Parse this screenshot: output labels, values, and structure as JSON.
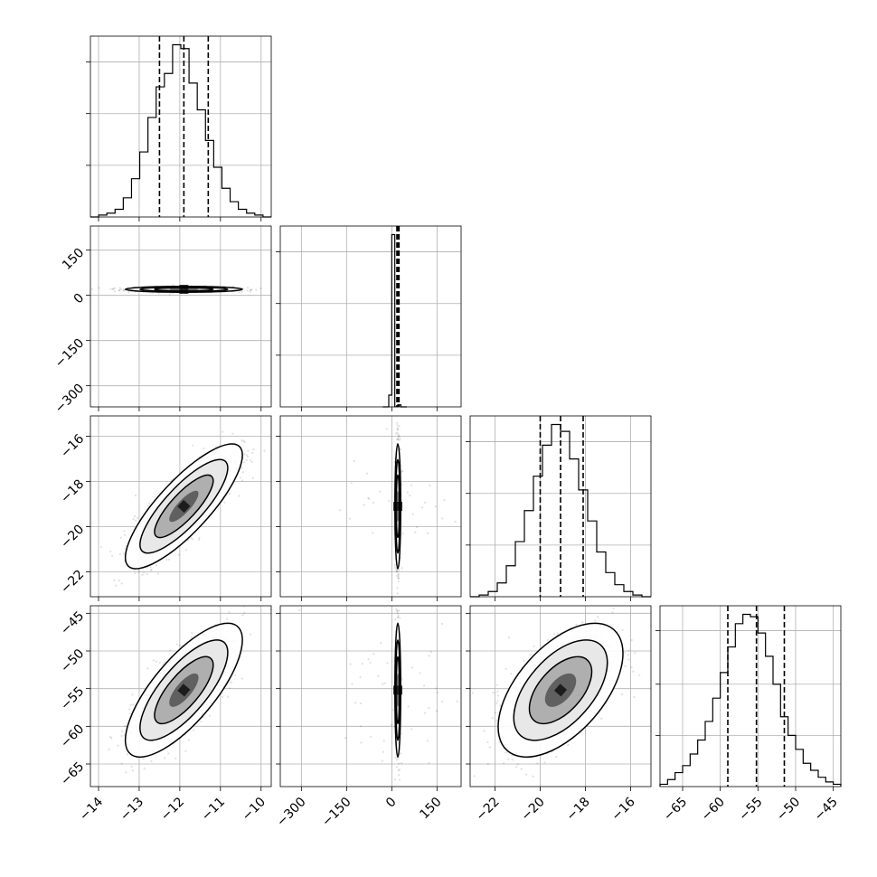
{
  "chart_data": {
    "type": "corner",
    "style": {
      "line_color": "#000000",
      "grid_color": "#b0b0b0",
      "scatter_color": "#000000"
    },
    "params": [
      {
        "mean": -11.9,
        "sd": 0.6,
        "xlim": [
          -14.2,
          -9.75
        ],
        "quantiles": [
          -12.5,
          -11.9,
          -11.3
        ],
        "ticks": [
          -14,
          -13,
          -12,
          -11,
          -10
        ],
        "tick_labels": [
          "−14",
          "−13",
          "−12",
          "−11",
          "−10"
        ]
      },
      {
        "mean": 20,
        "sd": 4,
        "xlim": [
          -370,
          230
        ],
        "quantiles": [
          17,
          20,
          24
        ],
        "ticks": [
          -300,
          -150,
          0,
          150
        ],
        "tick_labels": [
          "−300",
          "−150",
          "0",
          "150"
        ]
      },
      {
        "mean": -19.1,
        "sd": 1.15,
        "xlim": [
          -23.1,
          -15.1
        ],
        "quantiles": [
          -20.0,
          -19.1,
          -18.1
        ],
        "ticks": [
          -22,
          -20,
          -18,
          -16
        ],
        "tick_labels": [
          "−22",
          "−20",
          "−18",
          "−16"
        ]
      },
      {
        "mean": -55.2,
        "sd": 3.7,
        "xlim": [
          -68,
          -44
        ],
        "quantiles": [
          -59,
          -55.2,
          -51.5
        ],
        "ticks": [
          -65,
          -60,
          -55,
          -50,
          -45
        ],
        "tick_labels": [
          "−65",
          "−60",
          "−55",
          "−50",
          "−45"
        ]
      }
    ],
    "row_ylims": [
      null,
      [
        -370,
        230
      ],
      [
        -23.1,
        -15.1
      ],
      [
        -68,
        -44
      ]
    ],
    "hist_bins": [
      {
        "edges": [
          -14.2,
          -9.75
        ],
        "counts": [
          0,
          1,
          2,
          4,
          10,
          20,
          34,
          52,
          68,
          75,
          90,
          88,
          70,
          56,
          40,
          26,
          15,
          8,
          4,
          2,
          1,
          0
        ]
      },
      {
        "edges": [
          -30,
          50
        ],
        "counts": [
          0,
          0,
          205,
          3000,
          1,
          36,
          0,
          0
        ]
      },
      {
        "edges": [
          -23.1,
          -15.1
        ],
        "counts": [
          0,
          1,
          3,
          8,
          18,
          32,
          50,
          70,
          88,
          100,
          96,
          80,
          62,
          44,
          26,
          14,
          7,
          3,
          1,
          0
        ]
      },
      {
        "edges": [
          -68,
          -44
        ],
        "counts": [
          1,
          3,
          6,
          9,
          14,
          20,
          28,
          38,
          49,
          60,
          70,
          74,
          73,
          66,
          56,
          44,
          30,
          22,
          16,
          10,
          7,
          4,
          2,
          1
        ]
      }
    ],
    "correlations": {
      "1-0": 0.0,
      "2-0": 0.82,
      "2-1": 0.0,
      "3-0": 0.75,
      "3-1": 0.0,
      "3-2": 0.55
    },
    "contour_levels_sigma": [
      0.5,
      1.0,
      1.5,
      2.0
    ],
    "samples": 5000
  }
}
